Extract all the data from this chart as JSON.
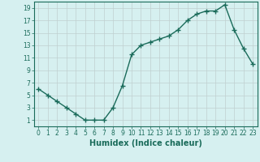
{
  "x": [
    0,
    1,
    2,
    3,
    4,
    5,
    6,
    7,
    8,
    9,
    10,
    11,
    12,
    13,
    14,
    15,
    16,
    17,
    18,
    19,
    20,
    21,
    22,
    23
  ],
  "y": [
    6,
    5,
    4,
    3,
    2,
    1,
    1,
    1,
    3,
    6.5,
    11.5,
    13,
    13.5,
    14,
    14.5,
    15.5,
    17,
    18,
    18.5,
    18.5,
    19.5,
    15.5,
    12.5,
    10
  ],
  "line_color": "#1a6b5a",
  "marker": "+",
  "marker_size": 4,
  "marker_linewidth": 1.0,
  "background_color": "#d6f0f0",
  "grid_color": "#c0d0d0",
  "xlabel": "Humidex (Indice chaleur)",
  "xlim": [
    -0.5,
    23.5
  ],
  "ylim": [
    0,
    20
  ],
  "yticks": [
    1,
    3,
    5,
    7,
    9,
    11,
    13,
    15,
    17,
    19
  ],
  "xticks": [
    0,
    1,
    2,
    3,
    4,
    5,
    6,
    7,
    8,
    9,
    10,
    11,
    12,
    13,
    14,
    15,
    16,
    17,
    18,
    19,
    20,
    21,
    22,
    23
  ],
  "tick_fontsize": 5.5,
  "label_fontsize": 7,
  "linewidth": 1.0
}
